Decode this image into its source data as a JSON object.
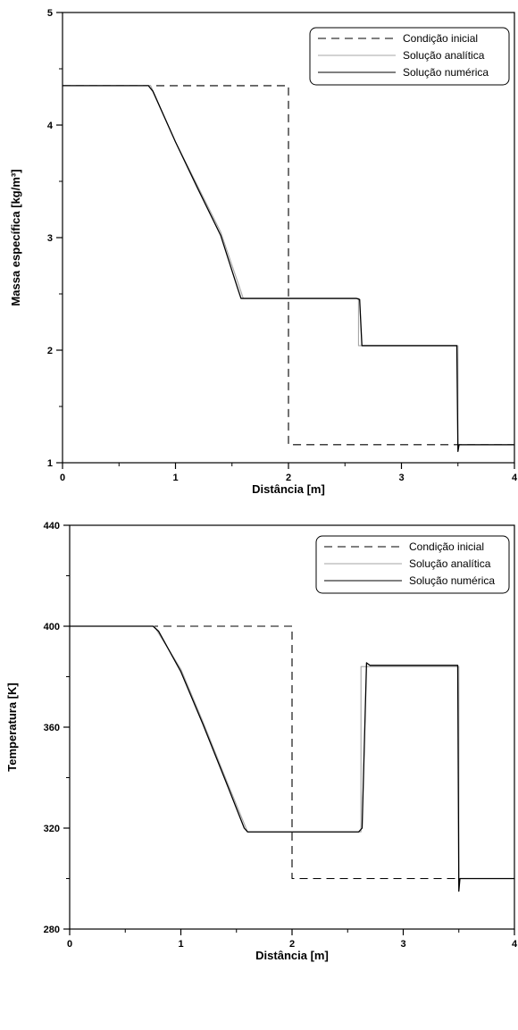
{
  "chart_data": [
    {
      "type": "line",
      "xlabel": "Distância [m]",
      "ylabel": "Massa específica [kg/m³]",
      "xlim": [
        0,
        4
      ],
      "ylim": [
        1,
        5
      ],
      "x_ticks": [
        "0",
        "1",
        "2",
        "3",
        "4"
      ],
      "y_ticks": [
        "1",
        "2",
        "3",
        "4",
        "5"
      ],
      "grid": false,
      "legend_position": "top-right",
      "legend": [
        "Condição inicial",
        "Solução analítica",
        "Solução numérica"
      ],
      "series": [
        {
          "name": "Condição inicial",
          "style": "dashed",
          "color": "#000000",
          "points": [
            [
              0,
              4.35
            ],
            [
              2.0,
              4.35
            ],
            [
              2.0,
              1.16
            ],
            [
              4.0,
              1.16
            ]
          ]
        },
        {
          "name": "Solução analítica",
          "style": "solid",
          "color": "#a6a6a6",
          "points": [
            [
              0,
              4.35
            ],
            [
              0.78,
              4.35
            ],
            [
              1.0,
              3.85
            ],
            [
              1.2,
              3.45
            ],
            [
              1.4,
              3.05
            ],
            [
              1.6,
              2.46
            ],
            [
              2.62,
              2.46
            ],
            [
              2.62,
              2.04
            ],
            [
              3.5,
              2.04
            ],
            [
              3.5,
              1.16
            ],
            [
              4.0,
              1.16
            ]
          ]
        },
        {
          "name": "Solução numérica",
          "style": "solid",
          "color": "#000000",
          "points": [
            [
              0,
              4.35
            ],
            [
              0.76,
              4.35
            ],
            [
              0.8,
              4.3
            ],
            [
              1.0,
              3.85
            ],
            [
              1.2,
              3.43
            ],
            [
              1.4,
              3.02
            ],
            [
              1.55,
              2.55
            ],
            [
              1.58,
              2.46
            ],
            [
              2.6,
              2.46
            ],
            [
              2.63,
              2.45
            ],
            [
              2.65,
              2.04
            ],
            [
              3.49,
              2.04
            ],
            [
              3.5,
              1.1
            ],
            [
              3.51,
              1.16
            ],
            [
              4.0,
              1.16
            ]
          ]
        }
      ]
    },
    {
      "type": "line",
      "xlabel": "Distância [m]",
      "ylabel": "Temperatura [K]",
      "xlim": [
        0,
        4
      ],
      "ylim": [
        280,
        440
      ],
      "x_ticks": [
        "0",
        "1",
        "2",
        "3",
        "4"
      ],
      "y_ticks": [
        "280",
        "320",
        "360",
        "400",
        "440"
      ],
      "grid": false,
      "legend_position": "top-right",
      "legend": [
        "Condição inicial",
        "Solução analítica",
        "Solução numérica"
      ],
      "series": [
        {
          "name": "Condição inicial",
          "style": "dashed",
          "color": "#000000",
          "points": [
            [
              0,
              400
            ],
            [
              2.0,
              400
            ],
            [
              2.0,
              300
            ],
            [
              4.0,
              300
            ]
          ]
        },
        {
          "name": "Solução analítica",
          "style": "solid",
          "color": "#a6a6a6",
          "points": [
            [
              0,
              400
            ],
            [
              0.76,
              400
            ],
            [
              1.0,
              383
            ],
            [
              1.2,
              362
            ],
            [
              1.4,
              340
            ],
            [
              1.6,
              318.5
            ],
            [
              2.62,
              318.5
            ],
            [
              2.62,
              384
            ],
            [
              3.5,
              384
            ],
            [
              3.5,
              300
            ],
            [
              4.0,
              300
            ]
          ]
        },
        {
          "name": "Solução numérica",
          "style": "solid",
          "color": "#000000",
          "points": [
            [
              0,
              400
            ],
            [
              0.75,
              400
            ],
            [
              0.8,
              398
            ],
            [
              1.0,
              382
            ],
            [
              1.2,
              361
            ],
            [
              1.4,
              339
            ],
            [
              1.57,
              320
            ],
            [
              1.6,
              318.5
            ],
            [
              2.6,
              318.5
            ],
            [
              2.63,
              320
            ],
            [
              2.67,
              385.5
            ],
            [
              2.7,
              384.5
            ],
            [
              3.49,
              384.5
            ],
            [
              3.5,
              295
            ],
            [
              3.51,
              300
            ],
            [
              4.0,
              300
            ]
          ]
        }
      ]
    }
  ]
}
